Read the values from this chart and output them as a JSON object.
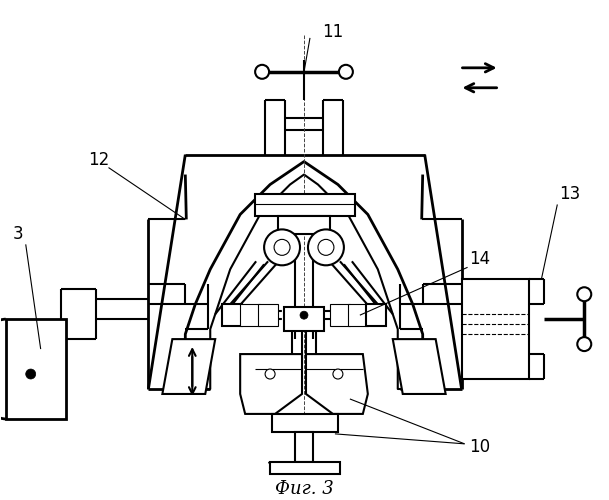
{
  "title": "Фиг. 3",
  "bg_color": "#ffffff",
  "line_color": "#000000",
  "lw": 1.5,
  "tlw": 0.8
}
